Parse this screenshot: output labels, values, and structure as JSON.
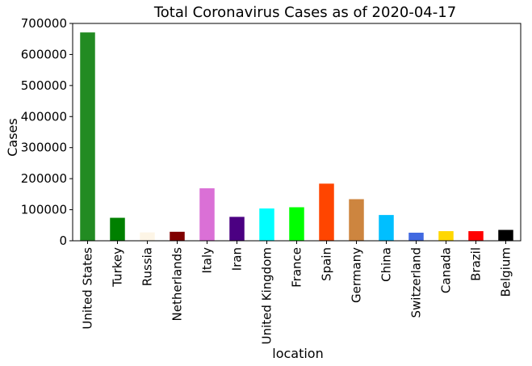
{
  "chart_data": {
    "type": "bar",
    "title": "Total Coronavirus Cases as of 2020-04-17",
    "xlabel": "location",
    "ylabel": "Cases",
    "ylim": [
      0,
      700000
    ],
    "yticks": [
      "0",
      "100000",
      "200000",
      "300000",
      "400000",
      "500000",
      "600000",
      "700000"
    ],
    "ytick_values": [
      0,
      100000,
      200000,
      300000,
      400000,
      500000,
      600000,
      700000
    ],
    "grid": false,
    "categories": [
      "United States",
      "Turkey",
      "Russia",
      "Netherlands",
      "Italy",
      "Iran",
      "United Kingdom",
      "France",
      "Spain",
      "Germany",
      "China",
      "Switzerland",
      "Canada",
      "Brazil",
      "Belgium"
    ],
    "values": [
      671000,
      74000,
      27000,
      29000,
      169000,
      77000,
      104000,
      108000,
      184000,
      134000,
      83000,
      26000,
      31000,
      31000,
      35000
    ],
    "colors": [
      "#228B22",
      "#008000",
      "#FDF5E6",
      "#800000",
      "#DA70D6",
      "#4B0082",
      "#00FFFF",
      "#00FF00",
      "#FF4500",
      "#CD853F",
      "#00BFFF",
      "#4169E1",
      "#FFD700",
      "#FF0000",
      "#000000"
    ]
  }
}
